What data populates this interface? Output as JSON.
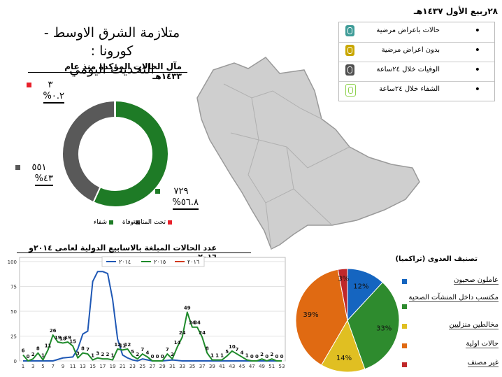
{
  "title": [
    "متلازمة الشرق الاوسط - كورونا :",
    "التحديث اليومي"
  ],
  "date": "٢٨ربيع الأول ١٤٣٧هـ",
  "map_legend": [
    {
      "label": "حالات باعراض مرضية",
      "color": "#3f9c98",
      "bullet": "•"
    },
    {
      "label": "بدون اعراض مرضية",
      "color": "#c9a700",
      "bullet": "•"
    },
    {
      "label": "الوفيات خلال  ٢٤ساعة",
      "color": "#4f4f4f",
      "bullet": "•"
    },
    {
      "label": "الشفاء خلال  ٢٤ساعة",
      "color": "#ffffff",
      "border": "#8fd14f",
      "bullet": "•"
    }
  ],
  "chart_data": [
    {
      "type": "pie",
      "title": "مآل الحالات المؤكدة منذ عام ١٤٣٣هـ",
      "slices": [
        {
          "name": "شفاء",
          "count": "٧٢٩",
          "percent_label": "%٥٦.٨",
          "value": 56.8,
          "color": "#1e7b26"
        },
        {
          "name": "وفاة",
          "count": "٥٥١",
          "percent_label": "%٤٣",
          "value": 43,
          "color": "#595959"
        },
        {
          "name": "تحت المتابعة",
          "count": "٣",
          "percent_label": "%٠.٢",
          "value": 0.2,
          "color": "#e8202a"
        }
      ]
    },
    {
      "type": "line",
      "title": "عدد الحالات المبلغة بالاسابيع الدولية لعامى  ٢٠١٤و ٢٠١٦",
      "x_ticks": [
        1,
        3,
        5,
        7,
        9,
        11,
        13,
        15,
        17,
        19,
        21,
        23,
        25,
        27,
        29,
        31,
        33,
        35,
        37,
        39,
        41,
        43,
        45,
        47,
        49,
        51,
        53
      ],
      "y_ticks": [
        0,
        25,
        50,
        75,
        100
      ],
      "ylim": [
        0,
        100
      ],
      "xlim": [
        1,
        53
      ],
      "series": [
        {
          "name": "٢٠١٤",
          "color": "#1f58b5",
          "x": [
            1,
            3,
            5,
            7,
            9,
            11,
            12,
            13,
            14,
            15,
            16,
            17,
            18,
            19,
            20,
            21,
            22,
            23,
            24,
            25,
            27,
            29,
            31,
            33,
            35,
            37,
            39,
            41,
            43,
            45,
            47,
            49,
            51,
            53
          ],
          "y": [
            0,
            0,
            0,
            0,
            3,
            4,
            12,
            27,
            30,
            80,
            90,
            90,
            88,
            62,
            22,
            6,
            3,
            1,
            0,
            2,
            0,
            0,
            1,
            0,
            0,
            0,
            0,
            0,
            0,
            0,
            0,
            0,
            0,
            0
          ]
        },
        {
          "name": "٢٠١٥",
          "color": "#1e8a2a",
          "x": [
            1,
            2,
            3,
            4,
            5,
            6,
            7,
            8,
            9,
            10,
            11,
            12,
            13,
            14,
            15,
            16,
            17,
            18,
            19,
            20,
            21,
            22,
            23,
            24,
            25,
            26,
            27,
            28,
            29,
            30,
            31,
            32,
            33,
            34,
            35,
            36,
            37,
            38,
            39,
            40,
            41,
            42,
            43,
            44,
            45,
            46,
            47,
            48,
            49,
            50,
            51,
            52,
            53
          ],
          "y": [
            6,
            0,
            2,
            8,
            1,
            11,
            26,
            19,
            18,
            19,
            15,
            3,
            8,
            7,
            1,
            3,
            2,
            2,
            1,
            12,
            11,
            12,
            5,
            2,
            7,
            4,
            0,
            0,
            0,
            7,
            2,
            14,
            24,
            49,
            34,
            34,
            24,
            8,
            1,
            1,
            1,
            5,
            10,
            7,
            4,
            1,
            0,
            0,
            2,
            0,
            2,
            0,
            0
          ],
          "labels": [
            6,
            0,
            2,
            8,
            1,
            11,
            26,
            19,
            18,
            19,
            15,
            3,
            8,
            7,
            1,
            3,
            2,
            2,
            1,
            12,
            11,
            12,
            5,
            2,
            7,
            4,
            0,
            0,
            0,
            7,
            2,
            14,
            24,
            49,
            34,
            34,
            24,
            8,
            1,
            1,
            1,
            5,
            10,
            7,
            4,
            1,
            0,
            0,
            2,
            0,
            2,
            0,
            0
          ]
        },
        {
          "name": "٢٠١٦",
          "color": "#d23a1e",
          "x": [],
          "y": []
        }
      ]
    },
    {
      "type": "pie",
      "title": "تصنيف العدوى (تراكميا)",
      "slices": [
        {
          "name": "عاملون صحيون",
          "value": 12,
          "label": "12%",
          "color": "#1565c0"
        },
        {
          "name": "مكتسب داخل المنشآت الصحية",
          "value": 33,
          "label": "33%",
          "color": "#2e8b2e"
        },
        {
          "name": "مخالطين منزليين",
          "value": 14,
          "label": "14%",
          "color": "#e0bf22"
        },
        {
          "name": "حالات اولية",
          "value": 39,
          "label": "39%",
          "color": "#e06a12"
        },
        {
          "name": "غير مصنف",
          "value": 3,
          "label": "3%",
          "color": "#c0282a"
        }
      ]
    }
  ]
}
